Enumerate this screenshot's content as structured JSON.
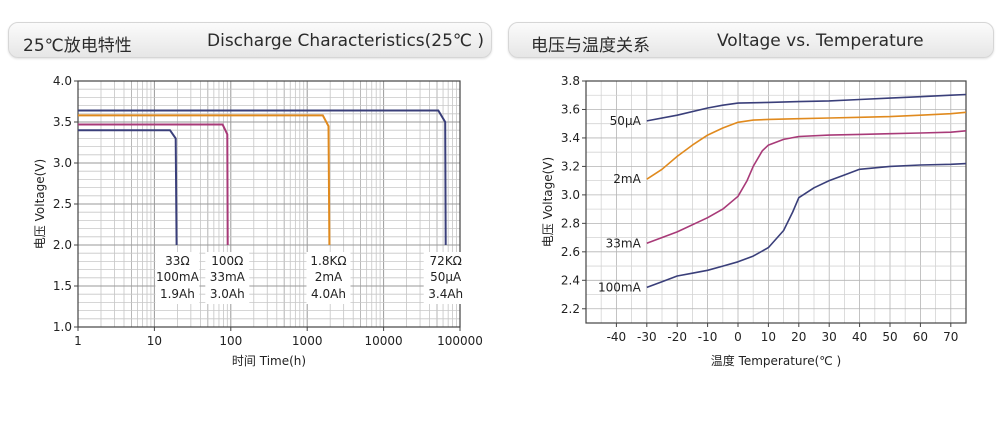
{
  "header_left": {
    "cn": "25℃放电特性",
    "en": "Discharge Characteristics(25℃ )"
  },
  "header_right": {
    "cn": "电压与温度关系",
    "en": "Voltage vs. Temperature"
  },
  "chart_data": [
    {
      "type": "line",
      "xlabel": "时间 Time(h)",
      "ylabel": "电压 Voltage(V)",
      "x_scale": "log",
      "xlim": [
        1,
        100000
      ],
      "ylim": [
        1.0,
        4.0
      ],
      "x_ticks": [
        "1",
        "10",
        "100",
        "1000",
        "10000",
        "100000"
      ],
      "y_ticks": [
        "1.0",
        "1.5",
        "2.0",
        "2.5",
        "3.0",
        "3.5",
        "4.0"
      ],
      "grid": true,
      "series": [
        {
          "name": "33Ω 100mA 1.9Ah",
          "color": "#3a3f7a",
          "labels": [
            "33Ω",
            "100mA",
            "1.9Ah"
          ],
          "label_x": 20,
          "x": [
            1,
            16,
            19,
            19.5
          ],
          "y": [
            3.4,
            3.4,
            3.3,
            2.0
          ]
        },
        {
          "name": "100Ω 33mA 3.0Ah",
          "color": "#a83a78",
          "labels": [
            "100Ω",
            "33mA",
            "3.0Ah"
          ],
          "label_x": 90,
          "x": [
            1,
            78,
            90,
            91
          ],
          "y": [
            3.47,
            3.47,
            3.35,
            2.0
          ]
        },
        {
          "name": "1.8KΩ 2mA 4.0Ah",
          "color": "#e08a1e",
          "labels": [
            "1.8KΩ",
            "2mA",
            "4.0Ah"
          ],
          "label_x": 1900,
          "x": [
            1,
            1600,
            1900,
            1950
          ],
          "y": [
            3.58,
            3.58,
            3.45,
            2.0
          ]
        },
        {
          "name": "72KΩ 50μA 3.4Ah",
          "color": "#3a3f7a",
          "labels": [
            "72KΩ",
            "50μA",
            "3.4Ah"
          ],
          "label_x": 65000,
          "x": [
            1,
            52000,
            64000,
            65000
          ],
          "y": [
            3.64,
            3.64,
            3.5,
            2.0
          ]
        }
      ]
    },
    {
      "type": "line",
      "xlabel": "温度 Temperature(℃ )",
      "ylabel": "电压 Voltage(V)",
      "xlim": [
        -50,
        75
      ],
      "ylim": [
        2.1,
        3.8
      ],
      "x_ticks": [
        "-40",
        "-30",
        "-20",
        "-10",
        "0",
        "10",
        "20",
        "30",
        "40",
        "50",
        "60",
        "70"
      ],
      "y_ticks": [
        "2.2",
        "2.4",
        "2.6",
        "2.8",
        "3.0",
        "3.2",
        "3.4",
        "3.6",
        "3.8"
      ],
      "grid": true,
      "series": [
        {
          "name": "50μA",
          "color": "#3a3f7a",
          "x": [
            -30,
            -20,
            -10,
            -5,
            0,
            10,
            20,
            30,
            40,
            50,
            60,
            70,
            75
          ],
          "y": [
            3.52,
            3.56,
            3.61,
            3.63,
            3.645,
            3.65,
            3.655,
            3.66,
            3.67,
            3.68,
            3.69,
            3.7,
            3.705
          ]
        },
        {
          "name": "2mA",
          "color": "#e08a1e",
          "x": [
            -30,
            -25,
            -20,
            -15,
            -10,
            -5,
            0,
            5,
            10,
            20,
            30,
            40,
            50,
            60,
            70,
            75
          ],
          "y": [
            3.11,
            3.18,
            3.27,
            3.35,
            3.42,
            3.47,
            3.51,
            3.525,
            3.53,
            3.535,
            3.54,
            3.545,
            3.55,
            3.56,
            3.57,
            3.58
          ]
        },
        {
          "name": "33mA",
          "color": "#a83a78",
          "x": [
            -30,
            -20,
            -10,
            -5,
            0,
            3,
            5,
            8,
            10,
            15,
            20,
            30,
            40,
            50,
            60,
            70,
            75
          ],
          "y": [
            2.66,
            2.74,
            2.84,
            2.9,
            2.99,
            3.1,
            3.2,
            3.31,
            3.35,
            3.39,
            3.41,
            3.42,
            3.425,
            3.43,
            3.435,
            3.44,
            3.45
          ]
        },
        {
          "name": "100mA",
          "color": "#3a3f7a",
          "x": [
            -30,
            -25,
            -20,
            -15,
            -10,
            -5,
            0,
            5,
            10,
            15,
            18,
            20,
            25,
            30,
            35,
            40,
            50,
            60,
            70,
            75
          ],
          "y": [
            2.35,
            2.39,
            2.43,
            2.45,
            2.47,
            2.5,
            2.53,
            2.57,
            2.63,
            2.75,
            2.88,
            2.98,
            3.05,
            3.1,
            3.14,
            3.18,
            3.2,
            3.21,
            3.215,
            3.22
          ]
        }
      ]
    }
  ]
}
